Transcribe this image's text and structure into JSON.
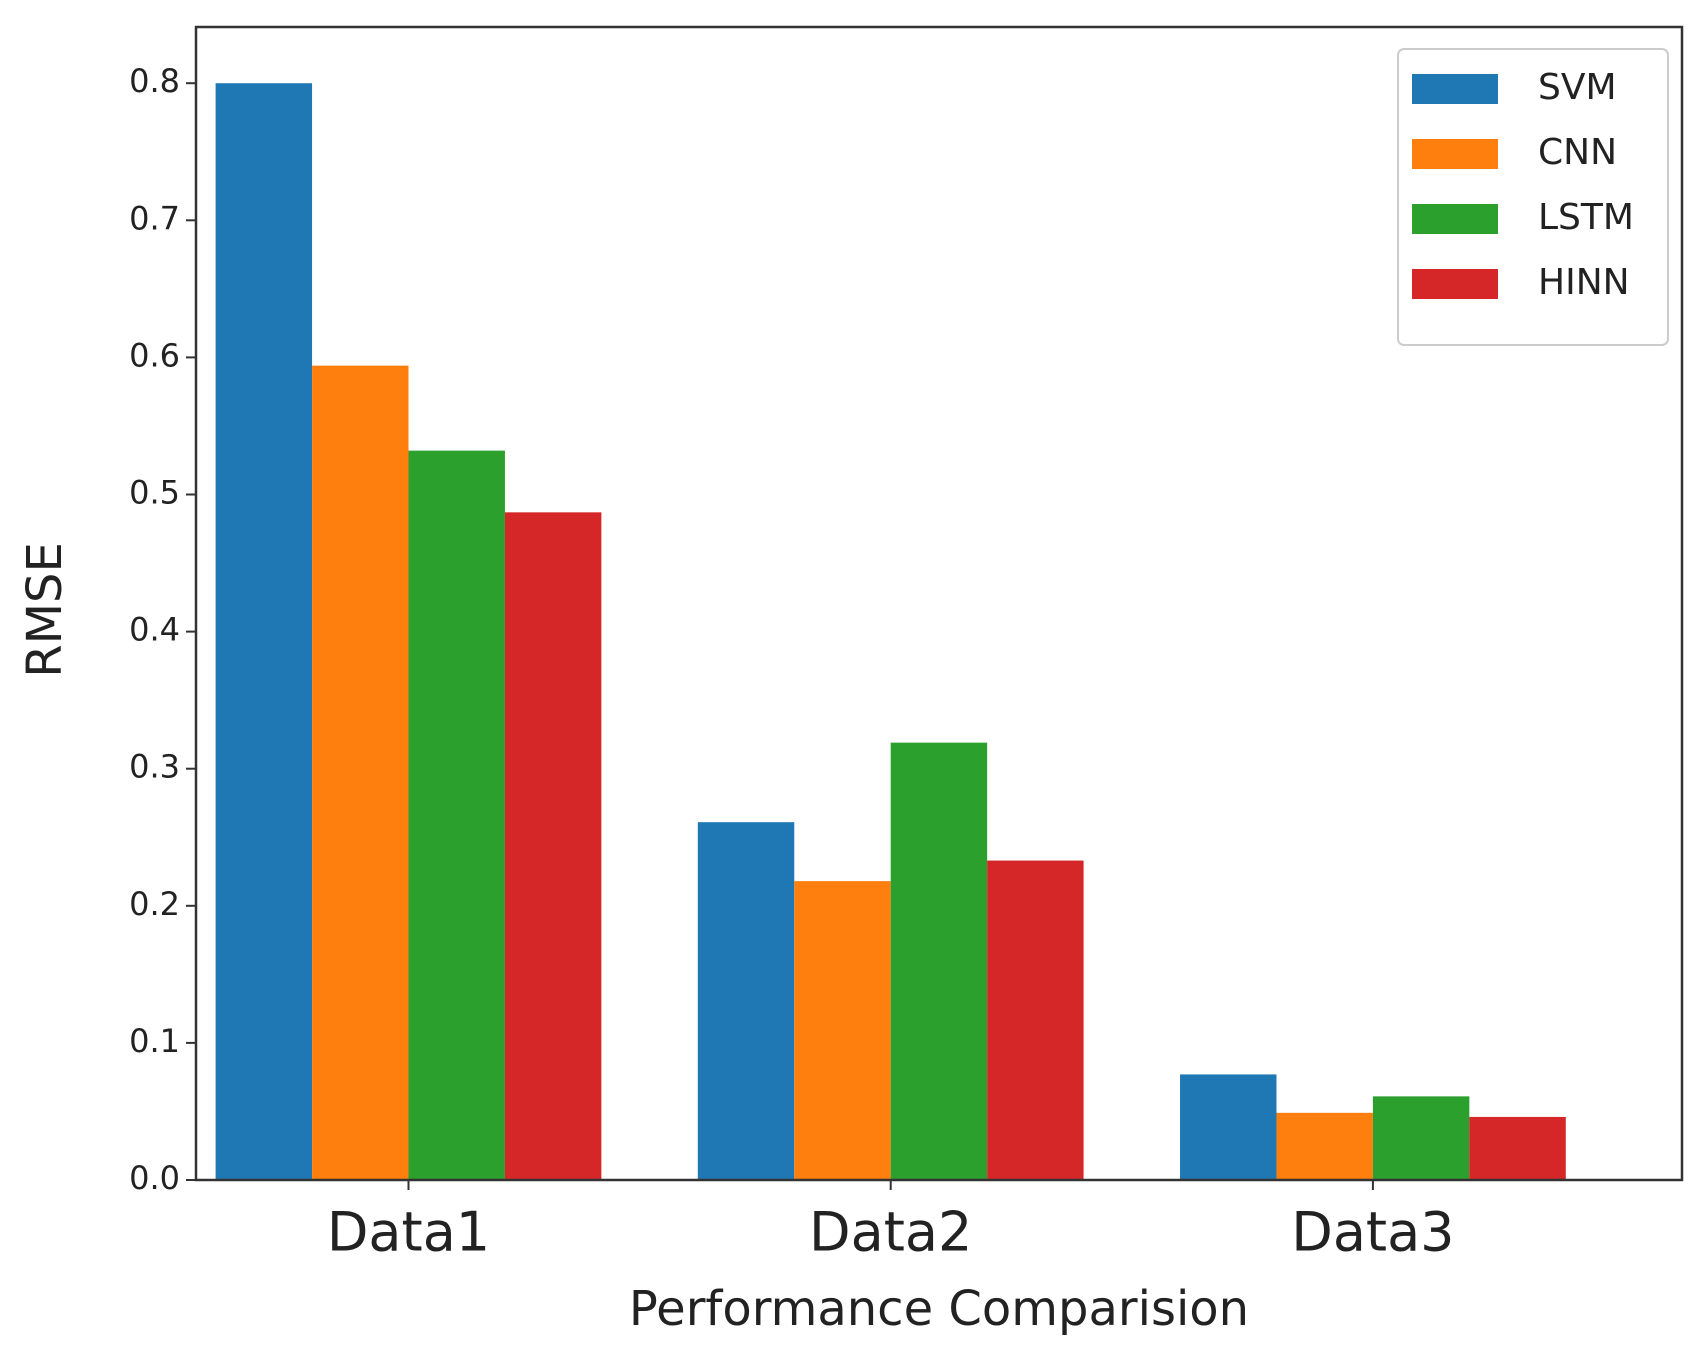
{
  "chart_data": {
    "type": "bar",
    "xlabel": "Performance Comparision",
    "ylabel": "RMSE",
    "categories": [
      "Data1",
      "Data2",
      "Data3"
    ],
    "series": [
      {
        "name": "SVM",
        "color": "#1f77b4",
        "values": [
          0.8,
          0.261,
          0.077
        ]
      },
      {
        "name": "CNN",
        "color": "#ff7f0e",
        "values": [
          0.594,
          0.218,
          0.049
        ]
      },
      {
        "name": "LSTM",
        "color": "#2ca02c",
        "values": [
          0.532,
          0.319,
          0.061
        ]
      },
      {
        "name": "HINN",
        "color": "#d62728",
        "values": [
          0.487,
          0.233,
          0.046
        ]
      }
    ],
    "ylim": [
      0,
      0.841
    ],
    "yticks": [
      {
        "value": 0,
        "label": "0.0"
      },
      0.1,
      0.2,
      0.3,
      0.4,
      0.5,
      0.6,
      0.7,
      0.8
    ],
    "legend": "upper right"
  }
}
